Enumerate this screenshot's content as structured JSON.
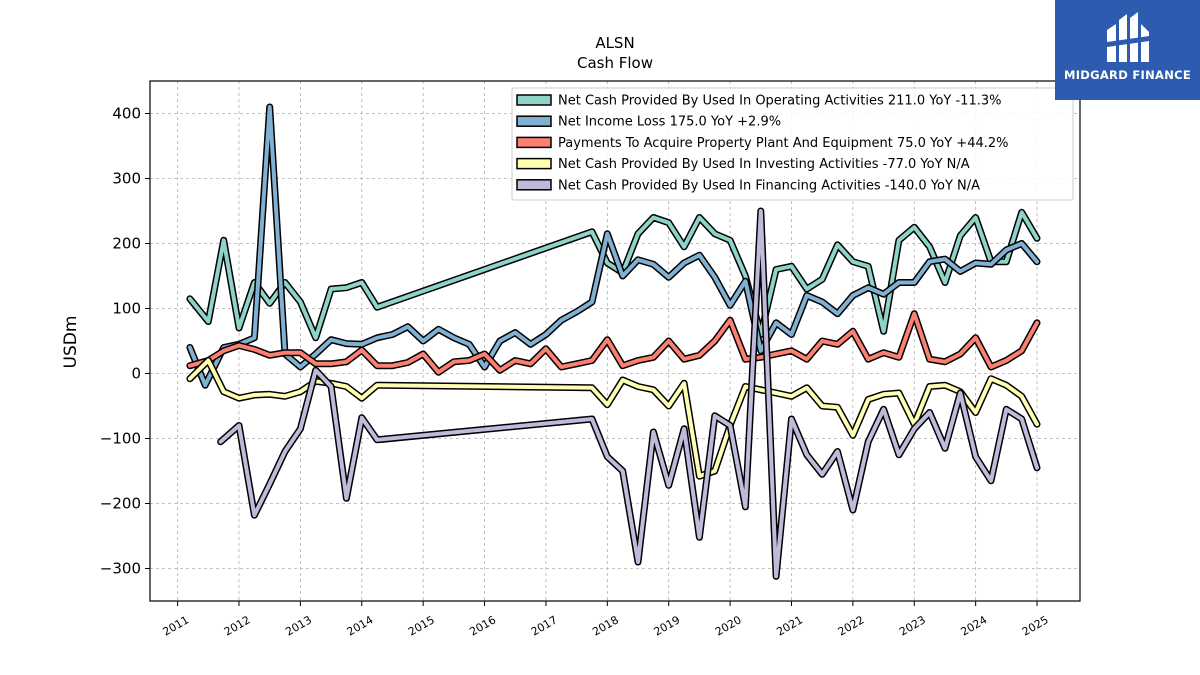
{
  "brand": {
    "name": "MIDGARD FINANCE",
    "color": "#2d5bb0"
  },
  "chart_data": {
    "type": "line",
    "title": "ALSN",
    "subtitle": "Cash Flow",
    "ylabel": "USDm",
    "xlabel": "",
    "ylim": [
      -350,
      450
    ],
    "xlim": [
      2010.55,
      2025.7
    ],
    "yticks": [
      -300,
      -200,
      -100,
      0,
      100,
      200,
      300,
      400
    ],
    "ytick_labels": [
      "−300",
      "−200",
      "−100",
      "0",
      "100",
      "200",
      "300",
      "400"
    ],
    "xticks": [
      2011,
      2012,
      2013,
      2014,
      2015,
      2016,
      2017,
      2018,
      2019,
      2020,
      2021,
      2022,
      2023,
      2024,
      2025
    ],
    "grid": true,
    "legend_position": "top-right",
    "series": [
      {
        "name": "Net Cash Provided By Used In Operating Activities",
        "legend": "Net Cash Provided By Used In Operating Activities  211.0 YoY -11.3%",
        "color": "#8dd3c7",
        "points": [
          [
            2011.2,
            115
          ],
          [
            2011.5,
            80
          ],
          [
            2011.75,
            205
          ],
          [
            2012.0,
            70
          ],
          [
            2012.25,
            140
          ],
          [
            2012.5,
            108
          ],
          [
            2012.75,
            140
          ],
          [
            2013.0,
            110
          ],
          [
            2013.25,
            55
          ],
          [
            2013.5,
            130
          ],
          [
            2013.75,
            132
          ],
          [
            2014.0,
            140
          ],
          [
            2014.25,
            102
          ],
          [
            2017.75,
            218
          ],
          [
            2018.0,
            170
          ],
          [
            2018.25,
            155
          ],
          [
            2018.5,
            215
          ],
          [
            2018.75,
            240
          ],
          [
            2019.0,
            232
          ],
          [
            2019.25,
            195
          ],
          [
            2019.5,
            240
          ],
          [
            2019.75,
            215
          ],
          [
            2020.0,
            205
          ],
          [
            2020.25,
            150
          ],
          [
            2020.5,
            60
          ],
          [
            2020.75,
            160
          ],
          [
            2021.0,
            165
          ],
          [
            2021.25,
            130
          ],
          [
            2021.5,
            145
          ],
          [
            2021.75,
            198
          ],
          [
            2022.0,
            172
          ],
          [
            2022.25,
            165
          ],
          [
            2022.5,
            65
          ],
          [
            2022.75,
            205
          ],
          [
            2023.0,
            225
          ],
          [
            2023.25,
            195
          ],
          [
            2023.5,
            140
          ],
          [
            2023.75,
            212
          ],
          [
            2024.0,
            240
          ],
          [
            2024.25,
            172
          ],
          [
            2024.5,
            172
          ],
          [
            2024.75,
            248
          ],
          [
            2025.0,
            208
          ]
        ]
      },
      {
        "name": "Net Income Loss",
        "legend": "Net Income Loss  175.0 YoY +2.9%",
        "color": "#80b1d3",
        "points": [
          [
            2011.2,
            40
          ],
          [
            2011.45,
            -18
          ],
          [
            2011.75,
            40
          ],
          [
            2012.0,
            45
          ],
          [
            2012.25,
            55
          ],
          [
            2012.5,
            410
          ],
          [
            2012.75,
            30
          ],
          [
            2013.0,
            10
          ],
          [
            2013.25,
            30
          ],
          [
            2013.5,
            52
          ],
          [
            2013.75,
            46
          ],
          [
            2014.0,
            45
          ],
          [
            2014.25,
            55
          ],
          [
            2014.5,
            60
          ],
          [
            2014.75,
            72
          ],
          [
            2015.0,
            50
          ],
          [
            2015.25,
            68
          ],
          [
            2015.5,
            55
          ],
          [
            2015.75,
            45
          ],
          [
            2016.0,
            10
          ],
          [
            2016.25,
            50
          ],
          [
            2016.5,
            63
          ],
          [
            2016.75,
            45
          ],
          [
            2017.0,
            60
          ],
          [
            2017.25,
            82
          ],
          [
            2017.5,
            95
          ],
          [
            2017.75,
            110
          ],
          [
            2018.0,
            215
          ],
          [
            2018.25,
            150
          ],
          [
            2018.5,
            175
          ],
          [
            2018.75,
            168
          ],
          [
            2019.0,
            148
          ],
          [
            2019.25,
            170
          ],
          [
            2019.5,
            182
          ],
          [
            2019.75,
            148
          ],
          [
            2020.0,
            105
          ],
          [
            2020.25,
            142
          ],
          [
            2020.5,
            35
          ],
          [
            2020.75,
            78
          ],
          [
            2021.0,
            60
          ],
          [
            2021.25,
            120
          ],
          [
            2021.5,
            110
          ],
          [
            2021.75,
            92
          ],
          [
            2022.0,
            120
          ],
          [
            2022.25,
            132
          ],
          [
            2022.5,
            122
          ],
          [
            2022.75,
            140
          ],
          [
            2023.0,
            140
          ],
          [
            2023.25,
            172
          ],
          [
            2023.5,
            176
          ],
          [
            2023.75,
            157
          ],
          [
            2024.0,
            170
          ],
          [
            2024.25,
            168
          ],
          [
            2024.5,
            190
          ],
          [
            2024.75,
            200
          ],
          [
            2025.0,
            172
          ]
        ]
      },
      {
        "name": "Payments To Acquire Property Plant And Equipment",
        "legend": "Payments To Acquire Property Plant And Equipment  75.0 YoY +44.2%",
        "color": "#fb8072",
        "points": [
          [
            2011.2,
            12
          ],
          [
            2011.5,
            20
          ],
          [
            2011.75,
            35
          ],
          [
            2012.0,
            43
          ],
          [
            2012.25,
            37
          ],
          [
            2012.5,
            28
          ],
          [
            2012.75,
            32
          ],
          [
            2013.0,
            32
          ],
          [
            2013.25,
            15
          ],
          [
            2013.5,
            15
          ],
          [
            2013.75,
            18
          ],
          [
            2014.0,
            36
          ],
          [
            2014.25,
            12
          ],
          [
            2014.5,
            12
          ],
          [
            2014.75,
            17
          ],
          [
            2015.0,
            30
          ],
          [
            2015.25,
            2
          ],
          [
            2015.5,
            18
          ],
          [
            2015.75,
            20
          ],
          [
            2016.0,
            30
          ],
          [
            2016.25,
            5
          ],
          [
            2016.5,
            20
          ],
          [
            2016.75,
            15
          ],
          [
            2017.0,
            38
          ],
          [
            2017.25,
            10
          ],
          [
            2017.5,
            15
          ],
          [
            2017.75,
            20
          ],
          [
            2018.0,
            52
          ],
          [
            2018.25,
            12
          ],
          [
            2018.5,
            20
          ],
          [
            2018.75,
            25
          ],
          [
            2019.0,
            50
          ],
          [
            2019.25,
            22
          ],
          [
            2019.5,
            28
          ],
          [
            2019.75,
            50
          ],
          [
            2020.0,
            82
          ],
          [
            2020.25,
            22
          ],
          [
            2020.5,
            25
          ],
          [
            2020.75,
            30
          ],
          [
            2021.0,
            35
          ],
          [
            2021.25,
            22
          ],
          [
            2021.5,
            50
          ],
          [
            2021.75,
            45
          ],
          [
            2022.0,
            65
          ],
          [
            2022.25,
            22
          ],
          [
            2022.5,
            32
          ],
          [
            2022.75,
            25
          ],
          [
            2023.0,
            92
          ],
          [
            2023.25,
            22
          ],
          [
            2023.5,
            18
          ],
          [
            2023.75,
            30
          ],
          [
            2024.0,
            55
          ],
          [
            2024.25,
            10
          ],
          [
            2024.5,
            20
          ],
          [
            2024.75,
            35
          ],
          [
            2025.0,
            78
          ]
        ]
      },
      {
        "name": "Net Cash Provided By Used In Investing Activities",
        "legend": "Net Cash Provided By Used In Investing Activities  -77.0 YoY N/A",
        "color": "#ffffb3",
        "points": [
          [
            2011.2,
            -8
          ],
          [
            2011.5,
            20
          ],
          [
            2011.75,
            -28
          ],
          [
            2012.0,
            -38
          ],
          [
            2012.25,
            -33
          ],
          [
            2012.5,
            -32
          ],
          [
            2012.75,
            -35
          ],
          [
            2013.0,
            -28
          ],
          [
            2013.25,
            -12
          ],
          [
            2013.5,
            -15
          ],
          [
            2013.75,
            -20
          ],
          [
            2014.0,
            -38
          ],
          [
            2014.25,
            -18
          ],
          [
            2017.75,
            -22
          ],
          [
            2018.0,
            -48
          ],
          [
            2018.25,
            -10
          ],
          [
            2018.5,
            -20
          ],
          [
            2018.75,
            -25
          ],
          [
            2019.0,
            -50
          ],
          [
            2019.25,
            -15
          ],
          [
            2019.5,
            -158
          ],
          [
            2019.75,
            -150
          ],
          [
            2020.0,
            -80
          ],
          [
            2020.25,
            -20
          ],
          [
            2020.5,
            -25
          ],
          [
            2020.75,
            -30
          ],
          [
            2021.0,
            -35
          ],
          [
            2021.25,
            -22
          ],
          [
            2021.5,
            -50
          ],
          [
            2021.75,
            -52
          ],
          [
            2022.0,
            -95
          ],
          [
            2022.25,
            -40
          ],
          [
            2022.5,
            -32
          ],
          [
            2022.75,
            -30
          ],
          [
            2023.0,
            -78
          ],
          [
            2023.25,
            -20
          ],
          [
            2023.5,
            -18
          ],
          [
            2023.75,
            -28
          ],
          [
            2024.0,
            -60
          ],
          [
            2024.25,
            -8
          ],
          [
            2024.5,
            -18
          ],
          [
            2024.75,
            -35
          ],
          [
            2025.0,
            -78
          ]
        ]
      },
      {
        "name": "Net Cash Provided By Used In Financing Activities",
        "legend": "Net Cash Provided By Used In Financing Activities  -140.0 YoY N/A",
        "color": "#bebada",
        "points": [
          [
            2011.7,
            -105
          ],
          [
            2012.0,
            -80
          ],
          [
            2012.25,
            -218
          ],
          [
            2012.5,
            -170
          ],
          [
            2012.75,
            -120
          ],
          [
            2013.0,
            -85
          ],
          [
            2013.25,
            5
          ],
          [
            2013.5,
            -20
          ],
          [
            2013.75,
            -192
          ],
          [
            2014.0,
            -68
          ],
          [
            2014.25,
            -102
          ],
          [
            2017.75,
            -70
          ],
          [
            2018.0,
            -128
          ],
          [
            2018.25,
            -150
          ],
          [
            2018.5,
            -290
          ],
          [
            2018.75,
            -90
          ],
          [
            2019.0,
            -172
          ],
          [
            2019.25,
            -85
          ],
          [
            2019.5,
            -252
          ],
          [
            2019.75,
            -65
          ],
          [
            2020.0,
            -80
          ],
          [
            2020.25,
            -205
          ],
          [
            2020.5,
            250
          ],
          [
            2020.75,
            -312
          ],
          [
            2021.0,
            -70
          ],
          [
            2021.25,
            -125
          ],
          [
            2021.5,
            -155
          ],
          [
            2021.75,
            -120
          ],
          [
            2022.0,
            -210
          ],
          [
            2022.25,
            -105
          ],
          [
            2022.5,
            -55
          ],
          [
            2022.75,
            -125
          ],
          [
            2023.0,
            -85
          ],
          [
            2023.25,
            -60
          ],
          [
            2023.5,
            -115
          ],
          [
            2023.75,
            -30
          ],
          [
            2024.0,
            -128
          ],
          [
            2024.25,
            -165
          ],
          [
            2024.5,
            -55
          ],
          [
            2024.75,
            -70
          ],
          [
            2025.0,
            -145
          ]
        ]
      }
    ]
  }
}
